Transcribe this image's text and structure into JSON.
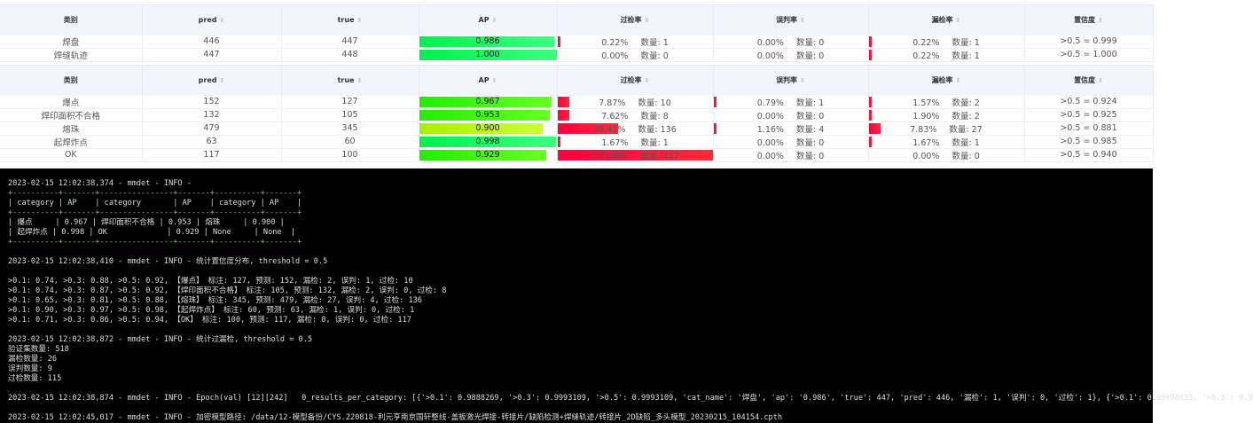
{
  "headers": {
    "category": "类别",
    "pred": "pred",
    "true": "true",
    "ap": "AP",
    "over": "过检率",
    "mis": "误判率",
    "miss": "漏检率",
    "conf": "置信度",
    "count_label": "数量: "
  },
  "colors": {
    "ap_bar_high": "#00ff66",
    "ap_bar_mid": "#66ff00",
    "ap_bar_low": "#b3ff1a",
    "rate_bar": "#ff0a3a",
    "header_bg": "#f2f5fb",
    "log_bg": "#000000"
  },
  "table1": [
    {
      "category": "焊盘",
      "pred": "446",
      "true": "447",
      "ap": "0.986",
      "ap_value": 0.986,
      "over": "0.22%",
      "over_value": 0.22,
      "over_count": "1",
      "mis": "0.00%",
      "mis_value": 0,
      "mis_count": "0",
      "miss": "0.22%",
      "miss_value": 0.22,
      "miss_count": "1",
      "conf": ">0.5 = 0.999"
    },
    {
      "category": "焊缝轨迹",
      "pred": "447",
      "true": "448",
      "ap": "1.000",
      "ap_value": 1.0,
      "over": "0.00%",
      "over_value": 0,
      "over_count": "0",
      "mis": "0.00%",
      "mis_value": 0,
      "mis_count": "0",
      "miss": "0.22%",
      "miss_value": 0.22,
      "miss_count": "1",
      "conf": ">0.5 = 1.000"
    }
  ],
  "table2": [
    {
      "category": "爆点",
      "pred": "152",
      "true": "127",
      "ap": "0.967",
      "ap_value": 0.967,
      "over": "7.87%",
      "over_value": 7.87,
      "over_count": "10",
      "mis": "0.79%",
      "mis_value": 0.79,
      "mis_count": "1",
      "miss": "1.57%",
      "miss_value": 1.57,
      "miss_count": "2",
      "conf": ">0.5 = 0.924"
    },
    {
      "category": "焊印面积不合格",
      "pred": "132",
      "true": "105",
      "ap": "0.953",
      "ap_value": 0.953,
      "over": "7.62%",
      "over_value": 7.62,
      "over_count": "8",
      "mis": "0.00%",
      "mis_value": 0,
      "mis_count": "0",
      "miss": "1.90%",
      "miss_value": 1.9,
      "miss_count": "2",
      "conf": ">0.5 = 0.925"
    },
    {
      "category": "熔珠",
      "pred": "479",
      "true": "345",
      "ap": "0.900",
      "ap_value": 0.9,
      "over": "39.42%",
      "over_value": 39.42,
      "over_count": "136",
      "mis": "1.16%",
      "mis_value": 1.16,
      "mis_count": "4",
      "miss": "7.83%",
      "miss_value": 7.83,
      "miss_count": "27",
      "conf": ">0.5 = 0.881"
    },
    {
      "category": "起焊炸点",
      "pred": "63",
      "true": "60",
      "ap": "0.998",
      "ap_value": 0.998,
      "over": "1.67%",
      "over_value": 1.67,
      "over_count": "1",
      "mis": "0.00%",
      "mis_value": 0,
      "mis_count": "0",
      "miss": "1.67%",
      "miss_value": 1.67,
      "miss_count": "1",
      "conf": ">0.5 = 0.985"
    },
    {
      "category": "OK",
      "pred": "117",
      "true": "100",
      "ap": "0.929",
      "ap_value": 0.929,
      "over": "117.00%",
      "over_value": 117.0,
      "over_count": "117",
      "mis": "0.00%",
      "mis_value": 0,
      "mis_count": "0",
      "miss": "0.00%",
      "miss_value": 0,
      "miss_count": "0",
      "conf": ">0.5 = 0.940"
    }
  ],
  "log": [
    "2023-02-15 12:02:38,374 - mmdet - INFO -",
    "+----------+-------+----------------+-------+----------+-------+",
    "| category | AP    | category       | AP    | category | AP    |",
    "+----------+-------+----------------+-------+----------+-------+",
    "| 爆点     | 0.967 | 焊印面积不合格 | 0.953 | 熔珠     | 0.900 |",
    "| 起焊炸点 | 0.998 | OK             | 0.929 | None     | None  |",
    "+----------+-------+----------------+-------+----------+-------+",
    "",
    "2023-02-15 12:02:38,410 - mmdet - INFO - 统计置信度分布, threshold = 0.5",
    "",
    ">0.1: 0.74, >0.3: 0.88, >0.5: 0.92, 【爆点】 标注: 127, 预测: 152, 漏检: 2, 误判: 1, 过检: 10",
    ">0.1: 0.74, >0.3: 0.87, >0.5: 0.92, 【焊印面积不合格】 标注: 105, 预测: 132, 漏检: 2, 误判: 0, 过检: 8",
    ">0.1: 0.65, >0.3: 0.81, >0.5: 0.88, 【熔珠】 标注: 345, 预测: 479, 漏检: 27, 误判: 4, 过检: 136",
    ">0.1: 0.90, >0.3: 0.97, >0.5: 0.98, 【起焊炸点】 标注: 60, 预测: 63, 漏检: 1, 误判: 0, 过检: 1",
    ">0.1: 0.71, >0.3: 0.86, >0.5: 0.94, 【OK】 标注: 100, 预测: 117, 漏检: 0, 误判: 0, 过检: 117",
    "",
    "2023-02-15 12:02:38,872 - mmdet - INFO - 统计过漏检, threshold = 0.5",
    "验证集数量: 518",
    "漏检数量: 26",
    "误判数量: 9",
    "过检数量: 115",
    "",
    "2023-02-15 12:02:38,874 - mmdet - INFO - Epoch(val) [12][242]   0_results_per_category: [{'>0.1': 0.9888269, '>0.3': 0.9993109, '>0.5': 0.9993109, 'cat_name': '焊盘', 'ap': '0.986', 'true': 447, 'pred': 446, '漏检': 1, '误判': 0, '过检': 1}, {'>0.1': 0.99998033, '>0.3': 0.9",
    "",
    "2023-02-15 12:02:45,017 - mmdet - INFO - 加密模型路径: /data/12-模型备份/CYS.220818-利元亨南京国轩整线-盖板激光焊接-转接片/缺陷检测+焊缝轨迹/转接片_2D缺陷_多头模型_20230215_104154.cpth"
  ]
}
